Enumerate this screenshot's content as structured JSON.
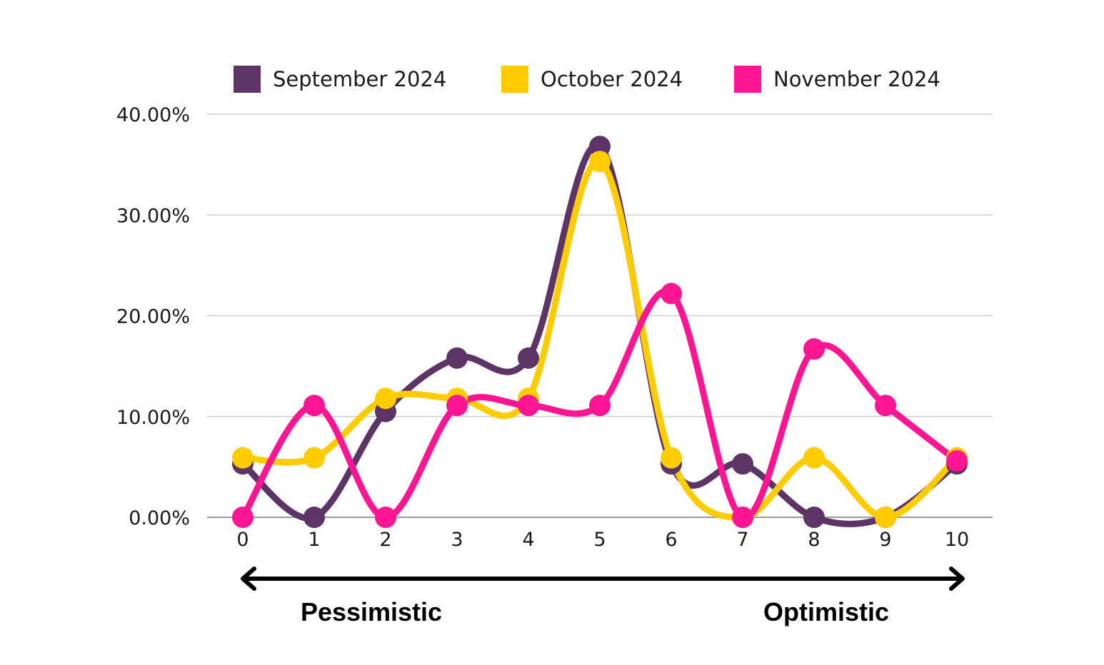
{
  "chart_data": {
    "type": "line",
    "title": "",
    "xlabel": "",
    "ylabel": "",
    "x": [
      0,
      1,
      2,
      3,
      4,
      5,
      6,
      7,
      8,
      9,
      10
    ],
    "ylim": [
      0,
      40
    ],
    "yticks": [
      "0.00%",
      "10.00%",
      "20.00%",
      "30.00%",
      "40.00%"
    ],
    "ytick_values": [
      0,
      10,
      20,
      30,
      40
    ],
    "grid": true,
    "legend_position": "top",
    "smooth": true,
    "series": [
      {
        "name": "September 2024",
        "color": "#5c3566",
        "values": [
          5.3,
          0,
          10.5,
          15.8,
          15.8,
          36.8,
          5.3,
          5.3,
          0,
          0,
          5.3
        ]
      },
      {
        "name": "October 2024",
        "color": "#ffcc00",
        "values": [
          5.9,
          5.9,
          11.8,
          11.8,
          11.8,
          35.3,
          5.9,
          0,
          5.9,
          0,
          5.9
        ]
      },
      {
        "name": "November 2024",
        "color": "#ff1493",
        "values": [
          0,
          11.1,
          0,
          11.1,
          11.1,
          11.1,
          22.2,
          0,
          16.7,
          11.1,
          5.6
        ]
      }
    ],
    "annotations": {
      "left": "Pessimistic",
      "right": "Optimistic"
    }
  }
}
